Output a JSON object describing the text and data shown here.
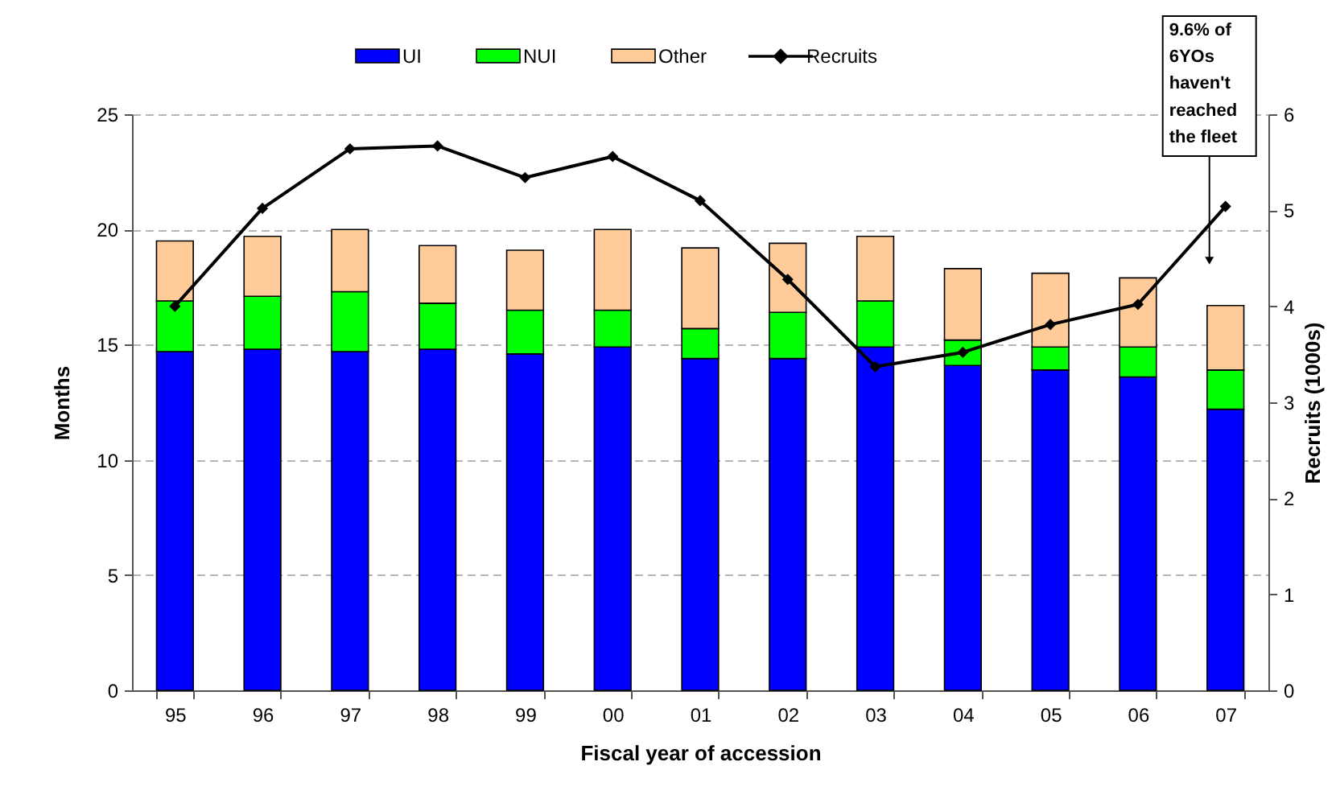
{
  "chart_data": {
    "type": "bar",
    "xlabel": "Fiscal year of accession",
    "ylabel": "Months",
    "y2label": "Recruits (1000s)",
    "categories": [
      "95",
      "96",
      "97",
      "98",
      "99",
      "00",
      "01",
      "02",
      "03",
      "04",
      "05",
      "06",
      "07"
    ],
    "series": [
      {
        "name": "UI",
        "color": "#0000ff",
        "values": [
          14.7,
          14.8,
          14.7,
          14.8,
          14.6,
          14.9,
          14.4,
          14.4,
          14.9,
          14.1,
          13.9,
          13.6,
          12.2
        ]
      },
      {
        "name": "NUI",
        "color": "#00ff00",
        "values": [
          2.2,
          2.3,
          2.6,
          2.0,
          1.9,
          1.6,
          1.3,
          2.0,
          2.0,
          1.1,
          1.0,
          1.3,
          1.7
        ]
      },
      {
        "name": "Other",
        "color": "#ffcc99",
        "values": [
          2.6,
          2.6,
          2.7,
          2.5,
          2.6,
          3.5,
          3.5,
          3.0,
          2.8,
          3.1,
          3.2,
          3.0,
          2.8
        ]
      },
      {
        "name": "Recruits",
        "type": "line",
        "axis": "y2",
        "color": "#000000",
        "values": [
          4.0,
          5.02,
          5.64,
          5.67,
          5.34,
          5.56,
          5.1,
          4.28,
          3.37,
          3.52,
          3.81,
          4.02,
          5.04
        ]
      }
    ],
    "stacked": true,
    "ylim": [
      0,
      25
    ],
    "yticks": [
      0,
      5,
      10,
      15,
      20,
      25
    ],
    "y2lim": [
      0,
      6
    ],
    "y2ticks": [
      0,
      1,
      2,
      3,
      4,
      5,
      6
    ],
    "grid": "y",
    "legend": "top",
    "marker": "diamond",
    "line_style": "solid",
    "annotations": [
      "9.6% of 6YOs haven't reached the fleet"
    ]
  }
}
